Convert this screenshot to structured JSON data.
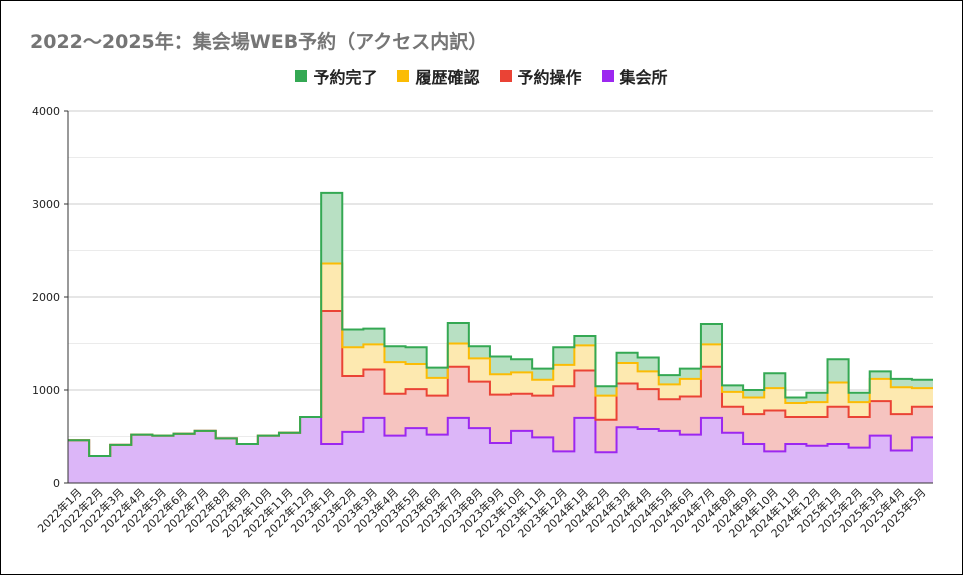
{
  "chart_data": {
    "type": "area",
    "title": "2022～2025年：集会場WEB予約（アクセス内訳）",
    "xlabel": "",
    "ylabel": "",
    "ylim": [
      0,
      4000
    ],
    "yticks": [
      "0",
      "1000",
      "2000",
      "3000",
      "4000"
    ],
    "grid": true,
    "legend_position": "top",
    "stacked": true,
    "step": true,
    "categories": [
      "2022年1月",
      "2022年2月",
      "2022年3月",
      "2022年4月",
      "2022年5月",
      "2022年6月",
      "2022年7月",
      "2022年8月",
      "2022年9月",
      "2022年10月",
      "2022年11月",
      "2022年12月",
      "2023年1月",
      "2023年2月",
      "2023年3月",
      "2023年4月",
      "2023年5月",
      "2023年6月",
      "2023年7月",
      "2023年8月",
      "2023年9月",
      "2023年10月",
      "2023年11月",
      "2023年12月",
      "2024年1月",
      "2024年2月",
      "2024年3月",
      "2024年4月",
      "2024年5月",
      "2024年6月",
      "2024年7月",
      "2024年8月",
      "2024年9月",
      "2024年10月",
      "2024年11月",
      "2024年12月",
      "2025年1月",
      "2025年2月",
      "2025年3月",
      "2025年4月",
      "2025年5月"
    ],
    "series": [
      {
        "name": "予約完了",
        "color": "#34a853",
        "fill": "#b8e0c3",
        "values": [
          0,
          0,
          0,
          0,
          0,
          0,
          0,
          0,
          0,
          0,
          0,
          0,
          760,
          190,
          170,
          170,
          180,
          110,
          220,
          130,
          190,
          140,
          120,
          190,
          100,
          100,
          110,
          150,
          100,
          110,
          220,
          70,
          80,
          160,
          60,
          100,
          250,
          100,
          80,
          90,
          90
        ]
      },
      {
        "name": "履歴確認",
        "color": "#fbbc04",
        "fill": "#fde9b0",
        "values": [
          0,
          0,
          0,
          0,
          0,
          0,
          0,
          0,
          0,
          0,
          0,
          0,
          510,
          310,
          270,
          340,
          270,
          190,
          250,
          250,
          220,
          230,
          170,
          230,
          270,
          260,
          220,
          190,
          160,
          190,
          240,
          160,
          180,
          240,
          150,
          160,
          260,
          160,
          240,
          290,
          200
        ]
      },
      {
        "name": "予約操作",
        "color": "#ea4335",
        "fill": "#f6c4c0",
        "values": [
          0,
          0,
          0,
          0,
          0,
          0,
          0,
          0,
          0,
          0,
          0,
          0,
          1430,
          600,
          520,
          450,
          420,
          420,
          550,
          500,
          520,
          400,
          450,
          700,
          510,
          350,
          470,
          430,
          340,
          410,
          550,
          280,
          320,
          440,
          290,
          310,
          400,
          330,
          370,
          390,
          330
        ]
      },
      {
        "name": "集会所",
        "color": "#9c27f0",
        "fill": "#dcb6f8",
        "values": [
          460,
          290,
          410,
          520,
          510,
          530,
          560,
          480,
          420,
          510,
          540,
          710,
          420,
          550,
          700,
          510,
          590,
          520,
          700,
          590,
          430,
          560,
          490,
          340,
          700,
          330,
          600,
          580,
          560,
          520,
          700,
          540,
          420,
          340,
          420,
          400,
          420,
          380,
          510,
          350,
          490
        ]
      }
    ]
  }
}
